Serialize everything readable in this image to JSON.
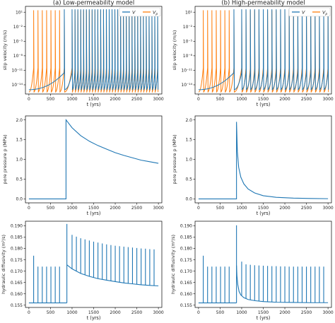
{
  "chart_data": [
    {
      "type": "line",
      "panel": "slip velocity, low permeability",
      "title": "(a) Low-permeability model",
      "xlabel": "t (yrs)",
      "ylabel": "slip velocity (m/s)",
      "yscale": "log",
      "xlim": [
        -80,
        3080
      ],
      "xticks": [
        0,
        500,
        1000,
        1500,
        2000,
        2500,
        3000
      ],
      "ylim_log10": [
        -15.9,
        2.2
      ],
      "yticks_log10": [
        1,
        -2,
        -5,
        -8,
        -11,
        -14
      ],
      "ytick_labels": [
        "10¹",
        "10⁻²",
        "10⁻⁵",
        "10⁻⁸",
        "10⁻¹¹",
        "10⁻¹⁴"
      ],
      "legend": {
        "position": "top-right",
        "entries": [
          "V",
          "V_p"
        ]
      },
      "colors": {
        "V": "#1f77b4",
        "V_p": "#ff7f0e"
      },
      "series": [
        {
          "name": "V",
          "event_times": [
            820,
            1000,
            1068,
            1134,
            1200,
            1266,
            1332,
            1398,
            1464,
            1530,
            1596,
            1662,
            1728,
            1794,
            1860,
            1926,
            1992,
            2058,
            2124,
            2190,
            2256,
            2322,
            2388,
            2454,
            2520,
            2586,
            2652,
            2718,
            2784,
            2850,
            2916,
            2982
          ],
          "peak_log10": 1.6,
          "interseismic_log10": [
            -15,
            -11.5
          ]
        },
        {
          "name": "V_p",
          "event_times": [
            110,
            210,
            310,
            410,
            510,
            610,
            710,
            820,
            1000,
            1068,
            1134,
            1200,
            1266,
            1332,
            1398,
            1464,
            1530,
            1596,
            1662,
            1728,
            1794,
            1860,
            1926,
            1992,
            2058,
            2124,
            2190,
            2256,
            2322,
            2388,
            2454,
            2520,
            2586,
            2652,
            2718,
            2784,
            2850,
            2916,
            2982
          ],
          "peak_log10": 1.4,
          "interseismic_log10": [
            -15.5,
            -10.5
          ]
        }
      ]
    },
    {
      "type": "line",
      "panel": "slip velocity, high permeability",
      "title": "(b) High-permeability model",
      "xlabel": "t (yrs)",
      "ylabel": "slip velocity (m/s)",
      "yscale": "log",
      "xlim": [
        -80,
        3080
      ],
      "xticks": [
        0,
        500,
        1000,
        1500,
        2000,
        2500,
        3000
      ],
      "ylim_log10": [
        -15.9,
        2.2
      ],
      "yticks_log10": [
        1,
        -2,
        -5,
        -8,
        -11,
        -14
      ],
      "ytick_labels": [
        "10¹",
        "10⁻²",
        "10⁻⁵",
        "10⁻⁸",
        "10⁻¹¹",
        "10⁻¹⁴"
      ],
      "legend": {
        "position": "top-right",
        "entries": [
          "V",
          "V_p"
        ]
      },
      "colors": {
        "V": "#1f77b4",
        "V_p": "#ff7f0e"
      },
      "series": [
        {
          "name": "V",
          "event_times": [
            820,
            1000,
            1100,
            1200,
            1300,
            1400,
            1500,
            1600,
            1700,
            1800,
            1900,
            2000,
            2100,
            2200,
            2300,
            2400,
            2500,
            2600,
            2700,
            2800,
            2900,
            3000
          ],
          "peak_log10": 1.6,
          "interseismic_log10": [
            -15,
            -11.5
          ]
        },
        {
          "name": "V_p",
          "event_times": [
            110,
            210,
            310,
            410,
            510,
            610,
            710,
            820,
            1000,
            1100,
            1200,
            1300,
            1400,
            1500,
            1600,
            1700,
            1800,
            1900,
            2000,
            2100,
            2200,
            2300,
            2400,
            2500,
            2600,
            2700,
            2800,
            2900,
            3000
          ],
          "peak_log10": 1.4,
          "interseismic_log10": [
            -15.5,
            -10.5
          ]
        }
      ]
    },
    {
      "type": "line",
      "panel": "pore pressure, low permeability",
      "xlabel": "t (yrs)",
      "ylabel": "pore pressure p (MPa)",
      "xlim": [
        -80,
        3080
      ],
      "xticks": [
        0,
        500,
        1000,
        1500,
        2000,
        2500,
        3000
      ],
      "ylim": [
        -0.1,
        2.1
      ],
      "yticks": [
        0.0,
        0.5,
        1.0,
        1.5,
        2.0
      ],
      "color": "#1f77b4",
      "series": [
        {
          "name": "",
          "x": [
            0,
            860,
            860,
            1000,
            1200,
            1400,
            1600,
            1800,
            2000,
            2200,
            2400,
            2600,
            2800,
            3000
          ],
          "y": [
            0,
            0,
            2.0,
            1.8,
            1.6,
            1.46,
            1.35,
            1.26,
            1.17,
            1.1,
            1.04,
            0.98,
            0.94,
            0.9
          ]
        }
      ]
    },
    {
      "type": "line",
      "panel": "pore pressure, high permeability",
      "xlabel": "t (yrs)",
      "ylabel": "pore pressure p (MPa)",
      "xlim": [
        -80,
        3080
      ],
      "xticks": [
        0,
        500,
        1000,
        1500,
        2000,
        2500,
        3000
      ],
      "ylim": [
        -0.1,
        2.1
      ],
      "yticks": [
        0.0,
        0.5,
        1.0,
        1.5,
        2.0
      ],
      "color": "#1f77b4",
      "series": [
        {
          "name": "",
          "x": [
            0,
            880,
            880,
            900,
            930,
            980,
            1050,
            1150,
            1300,
            1500,
            1800,
            2200,
            2600,
            3000
          ],
          "y": [
            0,
            0,
            1.95,
            1.2,
            0.8,
            0.55,
            0.38,
            0.25,
            0.15,
            0.08,
            0.04,
            0.02,
            0.01,
            0.005
          ]
        }
      ]
    },
    {
      "type": "line",
      "panel": "hydraulic diffusivity, low permeability",
      "xlabel": "t (yrs)",
      "ylabel": "hydraulic diffusivity (m²/s)",
      "xlim": [
        -80,
        3080
      ],
      "xticks": [
        0,
        500,
        1000,
        1500,
        2000,
        2500,
        3000
      ],
      "ylim": [
        0.154,
        0.192
      ],
      "yticks": [
        0.155,
        0.16,
        0.165,
        0.17,
        0.175,
        0.18,
        0.185,
        0.19
      ],
      "ytick_labels": [
        "0.155",
        "0.160",
        "0.165",
        "0.170",
        "0.175",
        "0.180",
        "0.185",
        "0.190"
      ],
      "color": "#1f77b4",
      "baseline_before": 0.156,
      "step_time": 880,
      "decay": {
        "x": [
          880,
          1000,
          1200,
          1400,
          1600,
          1800,
          2000,
          2200,
          2400,
          2600,
          2800,
          3000
        ],
        "y": [
          0.1728,
          0.171,
          0.169,
          0.1677,
          0.1667,
          0.166,
          0.1654,
          0.1648,
          0.1644,
          0.164,
          0.1637,
          0.1635
        ]
      },
      "spikes": [
        {
          "t": 110,
          "y": 0.1768
        },
        {
          "t": 210,
          "y": 0.172
        },
        {
          "t": 310,
          "y": 0.172
        },
        {
          "t": 410,
          "y": 0.172
        },
        {
          "t": 510,
          "y": 0.172
        },
        {
          "t": 610,
          "y": 0.172
        },
        {
          "t": 710,
          "y": 0.172
        },
        {
          "t": 880,
          "y": 0.1908
        },
        {
          "t": 1000,
          "y": 0.186
        },
        {
          "t": 1100,
          "y": 0.1852
        },
        {
          "t": 1200,
          "y": 0.1845
        },
        {
          "t": 1300,
          "y": 0.184
        },
        {
          "t": 1400,
          "y": 0.1835
        },
        {
          "t": 1500,
          "y": 0.183
        },
        {
          "t": 1600,
          "y": 0.1826
        },
        {
          "t": 1700,
          "y": 0.1822
        },
        {
          "t": 1800,
          "y": 0.1818
        },
        {
          "t": 1900,
          "y": 0.1815
        },
        {
          "t": 2000,
          "y": 0.1812
        },
        {
          "t": 2100,
          "y": 0.181
        },
        {
          "t": 2200,
          "y": 0.1808
        },
        {
          "t": 2300,
          "y": 0.1806
        },
        {
          "t": 2400,
          "y": 0.1804
        },
        {
          "t": 2500,
          "y": 0.1802
        },
        {
          "t": 2600,
          "y": 0.18
        },
        {
          "t": 2700,
          "y": 0.1799
        },
        {
          "t": 2800,
          "y": 0.1797
        },
        {
          "t": 2900,
          "y": 0.1796
        }
      ]
    },
    {
      "type": "line",
      "panel": "hydraulic diffusivity, high permeability",
      "xlabel": "t (yrs)",
      "ylabel": "hydraulic diffusivity (m²/s)",
      "xlim": [
        -80,
        3080
      ],
      "xticks": [
        0,
        500,
        1000,
        1500,
        2000,
        2500,
        3000
      ],
      "ylim": [
        0.154,
        0.192
      ],
      "yticks": [
        0.155,
        0.16,
        0.165,
        0.17,
        0.175,
        0.18,
        0.185,
        0.19
      ],
      "ytick_labels": [
        "0.155",
        "0.160",
        "0.165",
        "0.170",
        "0.175",
        "0.180",
        "0.185",
        "0.190"
      ],
      "color": "#1f77b4",
      "baseline_before": 0.156,
      "step_time": 880,
      "decay": {
        "x": [
          880,
          890,
          910,
          940,
          980,
          1050,
          1150,
          1300,
          1500,
          1800,
          2200,
          2600,
          3000
        ],
        "y": [
          0.1725,
          0.168,
          0.164,
          0.161,
          0.1595,
          0.1583,
          0.1575,
          0.157,
          0.1566,
          0.1563,
          0.1562,
          0.1561,
          0.1561
        ]
      },
      "spikes": [
        {
          "t": 110,
          "y": 0.1768
        },
        {
          "t": 210,
          "y": 0.172
        },
        {
          "t": 310,
          "y": 0.172
        },
        {
          "t": 410,
          "y": 0.172
        },
        {
          "t": 510,
          "y": 0.172
        },
        {
          "t": 610,
          "y": 0.172
        },
        {
          "t": 710,
          "y": 0.172
        },
        {
          "t": 880,
          "y": 0.1902
        },
        {
          "t": 1000,
          "y": 0.1742
        },
        {
          "t": 1100,
          "y": 0.173
        },
        {
          "t": 1200,
          "y": 0.1728
        },
        {
          "t": 1300,
          "y": 0.1726
        },
        {
          "t": 1400,
          "y": 0.1725
        },
        {
          "t": 1500,
          "y": 0.1724
        },
        {
          "t": 1600,
          "y": 0.1723
        },
        {
          "t": 1700,
          "y": 0.1722
        },
        {
          "t": 1800,
          "y": 0.1722
        },
        {
          "t": 1900,
          "y": 0.1721
        },
        {
          "t": 2000,
          "y": 0.1721
        },
        {
          "t": 2100,
          "y": 0.172
        },
        {
          "t": 2200,
          "y": 0.172
        },
        {
          "t": 2300,
          "y": 0.172
        },
        {
          "t": 2400,
          "y": 0.172
        },
        {
          "t": 2500,
          "y": 0.172
        },
        {
          "t": 2600,
          "y": 0.172
        },
        {
          "t": 2700,
          "y": 0.172
        },
        {
          "t": 2800,
          "y": 0.172
        },
        {
          "t": 2900,
          "y": 0.172
        }
      ]
    }
  ]
}
